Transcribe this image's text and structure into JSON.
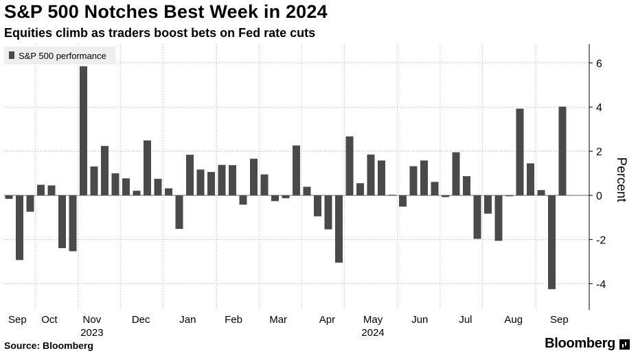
{
  "header": {
    "title": "S&P 500 Notches Best Week in 2024",
    "subtitle": "Equities climb as traders boost bets on Fed rate cuts"
  },
  "footer": {
    "source": "Source: Bloomberg",
    "brand": "Bloomberg",
    "brand_icon": "bloomberg-terminal-icon"
  },
  "colors": {
    "bar": "#4a4a4a",
    "grid": "#cccccc",
    "zero": "#666666",
    "legend_bg": "#eeeeee"
  },
  "chart_data": {
    "type": "bar",
    "title": "S&P 500 Notches Best Week in 2024",
    "legend": [
      "S&P 500 performance"
    ],
    "ylabel": "Percent",
    "ylim": [
      -5.2,
      6.8
    ],
    "yticks": [
      -4,
      -2,
      0,
      2,
      4,
      6
    ],
    "ytick_labels": [
      "-4",
      "-2",
      "0",
      "2",
      "4",
      "6"
    ],
    "series": [
      {
        "name": "S&P 500 performance",
        "values": [
          -0.16,
          -2.93,
          -0.74,
          0.48,
          0.45,
          -2.39,
          -2.53,
          5.85,
          1.31,
          2.24,
          1.0,
          0.77,
          0.21,
          2.49,
          0.75,
          0.32,
          -1.52,
          1.84,
          1.17,
          1.06,
          1.38,
          1.37,
          -0.42,
          1.66,
          0.95,
          -0.26,
          -0.13,
          2.26,
          0.39,
          -0.95,
          -1.54,
          -3.05,
          2.67,
          0.55,
          1.85,
          1.58,
          0.03,
          -0.51,
          1.32,
          1.58,
          0.61,
          -0.08,
          1.95,
          0.87,
          -1.97,
          -0.83,
          -2.06,
          -0.04,
          3.93,
          1.45,
          0.24,
          -4.25,
          4.02
        ]
      }
    ],
    "x_month_labels": [
      {
        "label": "Sep",
        "week_index": 0.8
      },
      {
        "label": "Oct",
        "week_index": 3.8
      },
      {
        "label": "Nov",
        "week_index": 7.8
      },
      {
        "label": "Dec",
        "week_index": 12.4
      },
      {
        "label": "Jan",
        "week_index": 16.8
      },
      {
        "label": "Feb",
        "week_index": 21.1
      },
      {
        "label": "Mar",
        "week_index": 25.3
      },
      {
        "label": "Apr",
        "week_index": 29.9
      },
      {
        "label": "May",
        "week_index": 34.2
      },
      {
        "label": "Jun",
        "week_index": 38.6
      },
      {
        "label": "Jul",
        "week_index": 42.9
      },
      {
        "label": "Aug",
        "week_index": 47.4
      },
      {
        "label": "Sep",
        "week_index": 51.7
      }
    ],
    "x_month_boundaries": [
      2.5,
      6.5,
      10.5,
      14.5,
      19.5,
      23.5,
      27.5,
      31.5,
      36.5,
      40.5,
      44.5,
      49.5
    ],
    "x_year_labels": [
      {
        "label": "2023",
        "week_index": 7.8
      },
      {
        "label": "2024",
        "week_index": 34.2
      }
    ]
  }
}
